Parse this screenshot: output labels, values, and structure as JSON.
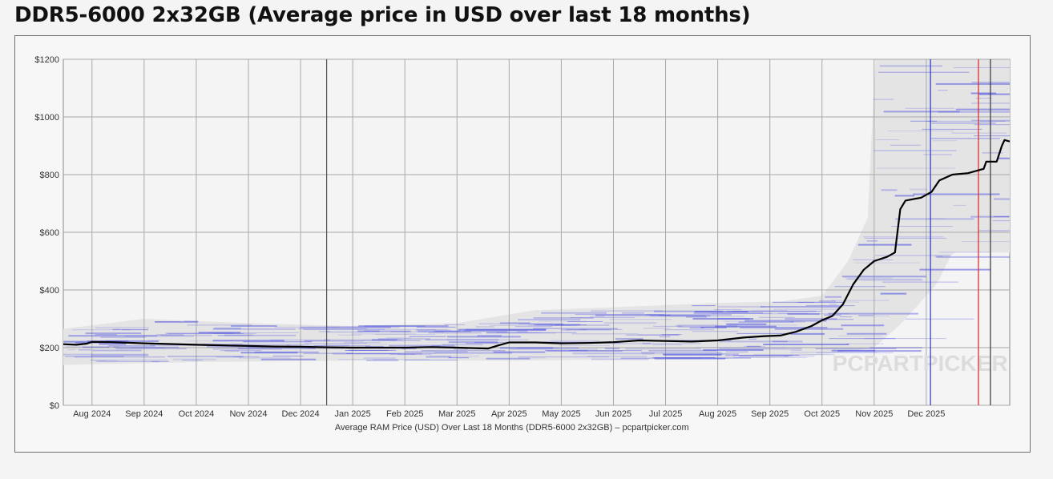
{
  "page": {
    "title": "DDR5-6000 2x32GB (Average price in USD over last 18 months)"
  },
  "chart_data": {
    "type": "line",
    "title": "DDR5-6000 2x32GB (Average price in USD over last 18 months)",
    "xlabel": "Average RAM Price (USD) Over Last 18 Months (DDR5-6000 2x32GB) – pcpartpicker.com",
    "ylabel": "",
    "ylim": [
      0,
      1200
    ],
    "y_ticks": [
      {
        "value": 0,
        "label": "$0"
      },
      {
        "value": 200,
        "label": "$200"
      },
      {
        "value": 400,
        "label": "$400"
      },
      {
        "value": 600,
        "label": "$600"
      },
      {
        "value": 800,
        "label": "$800"
      },
      {
        "value": 1000,
        "label": "$1000"
      },
      {
        "value": 1200,
        "label": "$1200"
      }
    ],
    "x_range_months": [
      -0.55,
      17.6
    ],
    "x_ticks": [
      {
        "label": "Aug 2024",
        "month": 0
      },
      {
        "label": "Sep 2024",
        "month": 1
      },
      {
        "label": "Oct 2024",
        "month": 2
      },
      {
        "label": "Nov 2024",
        "month": 3
      },
      {
        "label": "Dec 2024",
        "month": 4
      },
      {
        "label": "Jan 2025",
        "month": 5
      },
      {
        "label": "Feb 2025",
        "month": 6
      },
      {
        "label": "Mar 2025",
        "month": 7
      },
      {
        "label": "Apr 2025",
        "month": 8
      },
      {
        "label": "May 2025",
        "month": 9
      },
      {
        "label": "Jun 2025",
        "month": 10
      },
      {
        "label": "Jul 2025",
        "month": 11
      },
      {
        "label": "Aug 2025",
        "month": 12
      },
      {
        "label": "Sep 2025",
        "month": 13
      },
      {
        "label": "Oct 2025",
        "month": 14
      },
      {
        "label": "Nov 2025",
        "month": 15
      },
      {
        "label": "Dec 2025",
        "month": 16
      }
    ],
    "markers": [
      {
        "name": "year-boundary",
        "month": 4.5,
        "color": "#555555"
      },
      {
        "name": "blue-marker",
        "month": 16.08,
        "color": "#2233cc"
      },
      {
        "name": "red-marker",
        "month": 17.0,
        "color": "#dd2222"
      },
      {
        "name": "dark-marker",
        "month": 17.23,
        "color": "#333333"
      }
    ],
    "series": [
      {
        "name": "Average price",
        "color": "#000000",
        "points": [
          [
            -0.55,
            212
          ],
          [
            -0.3,
            210
          ],
          [
            -0.1,
            214
          ],
          [
            0.0,
            220
          ],
          [
            0.4,
            219
          ],
          [
            1.0,
            215
          ],
          [
            2.0,
            210
          ],
          [
            3.0,
            206
          ],
          [
            3.5,
            204
          ],
          [
            4.0,
            203
          ],
          [
            4.5,
            201
          ],
          [
            5.0,
            200
          ],
          [
            6.0,
            200
          ],
          [
            6.5,
            202
          ],
          [
            7.0,
            200
          ],
          [
            7.6,
            197
          ],
          [
            7.8,
            208
          ],
          [
            8.0,
            218
          ],
          [
            8.5,
            218
          ],
          [
            9.0,
            215
          ],
          [
            9.5,
            216
          ],
          [
            10.0,
            219
          ],
          [
            10.5,
            225
          ],
          [
            11.0,
            223
          ],
          [
            11.5,
            221
          ],
          [
            12.0,
            225
          ],
          [
            12.5,
            235
          ],
          [
            12.9,
            240
          ],
          [
            13.2,
            242
          ],
          [
            13.5,
            255
          ],
          [
            13.8,
            275
          ],
          [
            14.0,
            295
          ],
          [
            14.2,
            310
          ],
          [
            14.4,
            350
          ],
          [
            14.6,
            420
          ],
          [
            14.8,
            470
          ],
          [
            15.0,
            500
          ],
          [
            15.25,
            515
          ],
          [
            15.4,
            530
          ],
          [
            15.5,
            680
          ],
          [
            15.6,
            710
          ],
          [
            15.9,
            720
          ],
          [
            16.1,
            740
          ],
          [
            16.25,
            780
          ],
          [
            16.5,
            800
          ],
          [
            16.8,
            805
          ],
          [
            17.0,
            815
          ],
          [
            17.1,
            820
          ],
          [
            17.15,
            845
          ],
          [
            17.35,
            845
          ],
          [
            17.45,
            900
          ],
          [
            17.5,
            920
          ],
          [
            17.6,
            915
          ]
        ]
      }
    ],
    "price_range_band": {
      "name": "Retailer price range",
      "upper": [
        [
          -0.55,
          265
        ],
        [
          1.0,
          300
        ],
        [
          3.0,
          285
        ],
        [
          5.0,
          275
        ],
        [
          7.0,
          285
        ],
        [
          8.5,
          330
        ],
        [
          10.0,
          340
        ],
        [
          12.0,
          355
        ],
        [
          13.2,
          360
        ],
        [
          14.0,
          380
        ],
        [
          14.5,
          500
        ],
        [
          14.9,
          660
        ],
        [
          15.0,
          1200
        ],
        [
          17.6,
          1200
        ]
      ],
      "lower": [
        [
          -0.55,
          140
        ],
        [
          2.0,
          150
        ],
        [
          5.0,
          155
        ],
        [
          8.0,
          155
        ],
        [
          11.0,
          160
        ],
        [
          13.0,
          165
        ],
        [
          14.0,
          175
        ],
        [
          15.0,
          200
        ],
        [
          15.5,
          280
        ],
        [
          16.2,
          420
        ],
        [
          16.5,
          530
        ],
        [
          17.6,
          530
        ]
      ]
    },
    "watermark": "PCPARTPICKER"
  }
}
